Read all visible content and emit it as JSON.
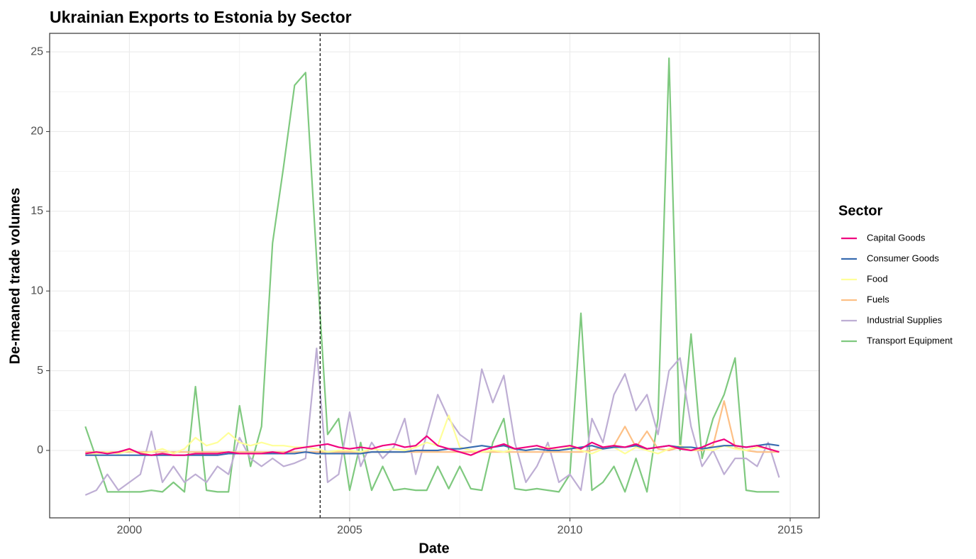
{
  "chart_data": {
    "type": "line",
    "title": "Ukrainian Exports to Estonia by Sector",
    "x_label": "Date",
    "y_label": "De-meaned trade volumes",
    "legend_title": "Sector",
    "legend_position": "right",
    "grid": true,
    "minor_grid": true,
    "vline": 2004.33,
    "xlim": [
      1998.19,
      2015.66
    ],
    "ylim": [
      -4.23,
      26.16
    ],
    "xticks": [
      2000,
      2005,
      2010,
      2015
    ],
    "yticks": [
      0,
      5,
      10,
      15,
      20,
      25
    ],
    "x": [
      1999,
      1999.25,
      1999.5,
      1999.75,
      2000,
      2000.25,
      2000.5,
      2000.75,
      2001,
      2001.25,
      2001.5,
      2001.75,
      2002,
      2002.25,
      2002.5,
      2002.75,
      2003,
      2003.25,
      2003.5,
      2003.75,
      2004,
      2004.25,
      2004.5,
      2004.75,
      2005,
      2005.25,
      2005.5,
      2005.75,
      2006,
      2006.25,
      2006.5,
      2006.75,
      2007,
      2007.25,
      2007.5,
      2007.75,
      2008,
      2008.25,
      2008.5,
      2008.75,
      2009,
      2009.25,
      2009.5,
      2009.75,
      2010,
      2010.25,
      2010.5,
      2010.75,
      2011,
      2011.25,
      2011.5,
      2011.75,
      2012,
      2012.25,
      2012.5,
      2012.75,
      2013,
      2013.25,
      2013.5,
      2013.75,
      2014,
      2014.25,
      2014.5,
      2014.75
    ],
    "series": [
      {
        "name": "Capital Goods",
        "color": "#f0027f",
        "values": [
          -0.2,
          -0.1,
          -0.2,
          -0.1,
          0.1,
          -0.2,
          -0.3,
          -0.2,
          -0.3,
          -0.3,
          -0.2,
          -0.2,
          -0.2,
          -0.1,
          -0.2,
          -0.2,
          -0.2,
          -0.1,
          -0.2,
          0.1,
          0.2,
          0.3,
          0.4,
          0.2,
          0.1,
          0.2,
          0.1,
          0.3,
          0.4,
          0.2,
          0.3,
          0.9,
          0.3,
          0.1,
          -0.1,
          -0.3,
          0,
          0.2,
          0.4,
          0.1,
          0.2,
          0.3,
          0.1,
          0.2,
          0.3,
          0.1,
          0.5,
          0.2,
          0.3,
          0.2,
          0.4,
          0.1,
          0.2,
          0.3,
          0.1,
          0,
          0.2,
          0.5,
          0.7,
          0.3,
          0.2,
          0.3,
          0.1,
          -0.1
        ]
      },
      {
        "name": "Consumer Goods",
        "color": "#386cb0",
        "values": [
          -0.3,
          -0.3,
          -0.3,
          -0.3,
          -0.3,
          -0.3,
          -0.3,
          -0.3,
          -0.3,
          -0.3,
          -0.3,
          -0.3,
          -0.3,
          -0.2,
          -0.2,
          -0.2,
          -0.2,
          -0.2,
          -0.2,
          -0.2,
          -0.1,
          -0.2,
          -0.2,
          -0.2,
          -0.2,
          -0.2,
          -0.1,
          -0.1,
          -0.1,
          -0.1,
          0,
          0,
          0,
          0.1,
          0.1,
          0.2,
          0.3,
          0.2,
          0.3,
          0.1,
          0,
          0.1,
          0,
          0,
          0.1,
          0.2,
          0.3,
          0.1,
          0.2,
          0.2,
          0.3,
          0.1,
          0.2,
          0.3,
          0.2,
          0.2,
          0.1,
          0.2,
          0.3,
          0.3,
          0.2,
          0.3,
          0.4,
          0.3
        ]
      },
      {
        "name": "Food",
        "color": "#ffff99",
        "values": [
          -0.3,
          -0.2,
          -0.1,
          -0.2,
          0,
          -0.2,
          -0.1,
          0.1,
          -0.2,
          0.1,
          0.8,
          0.3,
          0.5,
          1.1,
          0.5,
          0.3,
          0.5,
          0.3,
          0.3,
          0.2,
          0.2,
          0.1,
          -0.1,
          0,
          0,
          -0.1,
          0.1,
          0,
          0.1,
          0,
          0.2,
          0.5,
          0.3,
          2.2,
          0.2,
          0,
          -0.1,
          0,
          -0.1,
          0.1,
          0,
          0.1,
          0.2,
          0,
          0.2,
          0,
          -0.2,
          0.1,
          0.2,
          -0.2,
          0.2,
          0,
          -0.2,
          0.1,
          0.3,
          0,
          0.1,
          0,
          0.3,
          0.1,
          0,
          0.2,
          0.1,
          -0.1
        ]
      },
      {
        "name": "Fuels",
        "color": "#fdc086",
        "values": [
          -0.1,
          -0.1,
          -0.1,
          -0.1,
          -0.1,
          -0.1,
          -0.1,
          -0.1,
          -0.1,
          -0.1,
          -0.1,
          -0.1,
          -0.1,
          -0.1,
          -0.1,
          -0.1,
          -0.1,
          -0.1,
          -0.1,
          -0.1,
          -0.1,
          -0.1,
          -0.1,
          -0.1,
          -0.1,
          -0.1,
          -0.1,
          -0.1,
          -0.1,
          -0.1,
          -0.1,
          -0.1,
          -0.1,
          -0.1,
          -0.1,
          -0.1,
          -0.1,
          -0.1,
          -0.1,
          -0.1,
          -0.1,
          -0.1,
          -0.1,
          -0.1,
          -0.1,
          -0.1,
          0,
          0.2,
          0.3,
          1.5,
          0.2,
          1.2,
          0.1,
          0,
          0.2,
          0,
          0,
          0.3,
          3.1,
          0.2,
          0,
          -0.1,
          -0.1,
          -0.1
        ]
      },
      {
        "name": "Industrial Supplies",
        "color": "#beaed4",
        "values": [
          -2.8,
          -2.5,
          -1.5,
          -2.5,
          -2.0,
          -1.5,
          1.2,
          -2.0,
          -1.0,
          -2.0,
          -1.5,
          -2.0,
          -1.0,
          -1.5,
          0.8,
          -0.5,
          -1.0,
          -0.5,
          -1.0,
          -0.8,
          -0.5,
          6.4,
          -2.0,
          -1.5,
          2.4,
          -1.0,
          0.5,
          -0.5,
          0.2,
          2.0,
          -1.5,
          1.0,
          3.5,
          2.0,
          1.0,
          0.5,
          5.1,
          3.0,
          4.7,
          0.5,
          -2.0,
          -1.0,
          0.5,
          -2.0,
          -1.5,
          -2.5,
          2.0,
          0.5,
          3.5,
          4.8,
          2.5,
          3.5,
          1.0,
          5.0,
          5.8,
          1.5,
          -1.0,
          0,
          -1.5,
          -0.5,
          -0.5,
          -1.0,
          0.5,
          -1.7
        ]
      },
      {
        "name": "Transport Equipment",
        "color": "#7fc97f",
        "values": [
          1.5,
          -0.5,
          -2.6,
          -2.6,
          -2.6,
          -2.6,
          -2.5,
          -2.6,
          -2.0,
          -2.6,
          4.0,
          -2.5,
          -2.6,
          -2.6,
          2.8,
          -1.0,
          1.5,
          13.0,
          17.8,
          22.9,
          23.7,
          12.0,
          1.0,
          2.0,
          -2.5,
          0.5,
          -2.5,
          -1.0,
          -2.5,
          -2.4,
          -2.5,
          -2.5,
          -1.0,
          -2.4,
          -1.0,
          -2.4,
          -2.5,
          0.5,
          2.0,
          -2.4,
          -2.5,
          -2.4,
          -2.5,
          -2.6,
          -1.5,
          8.6,
          -2.5,
          -2.0,
          -1.0,
          -2.6,
          -0.5,
          -2.6,
          2.0,
          24.6,
          0,
          7.3,
          -0.5,
          2.0,
          3.5,
          5.8,
          -2.5,
          -2.6,
          -2.6,
          -2.6
        ]
      }
    ]
  }
}
